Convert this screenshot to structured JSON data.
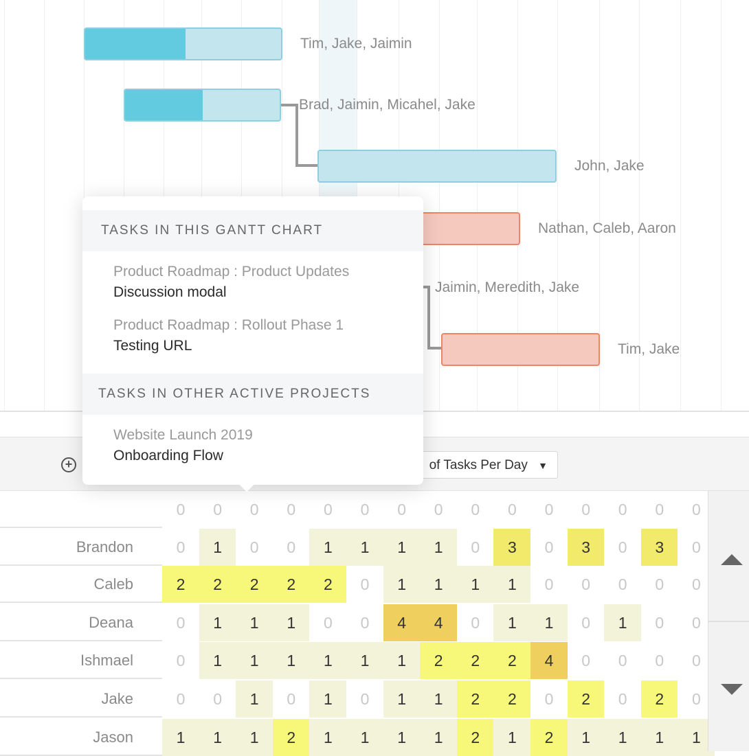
{
  "gantt": {
    "bars": [
      {
        "assignees": "Tim, Jake, Jaimin",
        "color": "blue",
        "progress": 0.5
      },
      {
        "assignees": "Brad, Jaimin, Micahel, Jake",
        "color": "blue",
        "progress": 0.5
      },
      {
        "assignees": "John, Jake",
        "color": "blue",
        "progress": 0
      },
      {
        "assignees": "Nathan, Caleb, Aaron",
        "color": "red",
        "progress": 0
      },
      {
        "assignees": "Jaimin, Meredith, Jake",
        "color": "red",
        "progress": 0
      },
      {
        "assignees": "Tim, Jake",
        "color": "red",
        "progress": 0
      }
    ]
  },
  "popover": {
    "section1_title": "TASKS IN THIS GANTT CHART",
    "section1_items": [
      {
        "project": "Product Roadmap : Product Updates",
        "task": "Discussion modal"
      },
      {
        "project": "Product Roadmap : Rollout Phase 1",
        "task": "Testing URL"
      }
    ],
    "section2_title": "TASKS IN OTHER ACTIVE PROJECTS",
    "section2_items": [
      {
        "project": "Website Launch 2019",
        "task": "Onboarding Flow"
      }
    ]
  },
  "toolbar": {
    "metric_label": "of Tasks Per Day",
    "metric_caret": "▼",
    "add_icon": "⊕"
  },
  "workload": {
    "colors": {
      "0": "#ffffff",
      "1": "#f3f3d9",
      "2": "#f7f77a",
      "3": "#f2ea6a",
      "4": "#efcf5e"
    },
    "rows": [
      {
        "name": "",
        "values": [
          0,
          0,
          0,
          0,
          0,
          0,
          0,
          0,
          0,
          0,
          0,
          0,
          0,
          0,
          0
        ]
      },
      {
        "name": "Brandon",
        "values": [
          0,
          1,
          0,
          0,
          1,
          1,
          1,
          1,
          0,
          3,
          0,
          3,
          0,
          3,
          0
        ]
      },
      {
        "name": "Caleb",
        "values": [
          2,
          2,
          2,
          2,
          2,
          0,
          1,
          1,
          1,
          1,
          0,
          0,
          0,
          0,
          0
        ]
      },
      {
        "name": "Deana",
        "values": [
          0,
          1,
          1,
          1,
          0,
          0,
          4,
          4,
          0,
          1,
          1,
          0,
          1,
          0,
          0
        ]
      },
      {
        "name": "Ishmael",
        "values": [
          0,
          1,
          1,
          1,
          1,
          1,
          1,
          2,
          2,
          2,
          4,
          0,
          0,
          0,
          0
        ]
      },
      {
        "name": "Jake",
        "values": [
          0,
          0,
          1,
          0,
          1,
          0,
          1,
          1,
          2,
          2,
          0,
          2,
          0,
          2,
          0
        ]
      },
      {
        "name": "Jason",
        "values": [
          1,
          1,
          1,
          2,
          1,
          1,
          1,
          1,
          2,
          1,
          2,
          1,
          1,
          1,
          1
        ]
      }
    ]
  }
}
